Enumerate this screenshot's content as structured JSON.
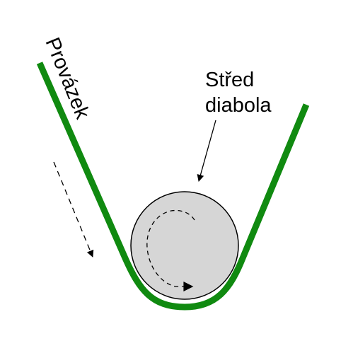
{
  "labels": {
    "string": "Provázek",
    "center_line1": "Střed",
    "center_line2": "diabola"
  },
  "colors": {
    "string": "#108a10",
    "diabolo_fill": "#d6d6d6",
    "diabolo_stroke": "#000000",
    "arrows": "#000000",
    "background": "#ffffff"
  }
}
